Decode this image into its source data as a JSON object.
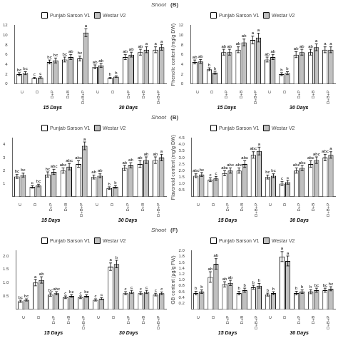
{
  "chart_data": [
    {
      "type": "bar",
      "subtitle": "Shoot",
      "categories": [
        "C",
        "D",
        "D+P",
        "D+B",
        "D+B+P",
        "C",
        "D",
        "D+P",
        "D+B",
        "D+B+P"
      ],
      "group_labels": [
        "15 Days",
        "30 Days"
      ],
      "series": [
        {
          "name": "Punjab Sarson V1",
          "color": "white",
          "values": [
            2.0,
            1.2,
            4.5,
            5.0,
            5.2,
            3.5,
            1.2,
            5.5,
            6.5,
            7.0
          ],
          "errors": [
            0.3,
            0.15,
            0.4,
            0.5,
            0.5,
            0.4,
            0.15,
            0.5,
            0.6,
            0.6
          ],
          "annotations": [
            "bc",
            "c",
            "bc",
            "bc",
            "bc",
            "ab",
            "b",
            "ab",
            "ab",
            "a"
          ]
        },
        {
          "name": "Westar V2",
          "color": "#c0c0c0",
          "values": [
            2.2,
            1.3,
            4.8,
            5.5,
            10.5,
            3.8,
            1.5,
            6.0,
            7.0,
            7.5
          ],
          "errors": [
            0.3,
            0.15,
            0.5,
            0.5,
            0.8,
            0.4,
            0.15,
            0.5,
            0.6,
            0.6
          ],
          "annotations": [
            "bc",
            "c",
            "bc",
            "ab",
            "a",
            "ab",
            "b",
            "ab",
            "a",
            "a"
          ]
        }
      ],
      "edge_color": "black",
      "ylim": [
        0,
        12
      ],
      "yticks": [
        0,
        2,
        4,
        6,
        8,
        10,
        12
      ],
      "grid": false,
      "legend": "top"
    },
    {
      "type": "bar",
      "title": "(B)",
      "ylabel": "Phenolic content (mg/g DW)",
      "categories": [
        "C",
        "D",
        "D+P",
        "D+B",
        "D+B+P",
        "C",
        "D",
        "D+P",
        "D+B",
        "D+B+P"
      ],
      "group_labels": [
        "15 Days",
        "30 Days"
      ],
      "series": [
        {
          "name": "Punjab Sarson V1",
          "color": "white",
          "values": [
            4.5,
            3.0,
            6.5,
            7.0,
            9.0,
            5.0,
            2.0,
            6.0,
            6.5,
            7.0
          ],
          "errors": [
            0.4,
            0.3,
            0.6,
            0.6,
            0.8,
            0.5,
            0.3,
            0.6,
            0.6,
            0.6
          ],
          "annotations": [
            "ab",
            "b",
            "ab",
            "ab",
            "a",
            "ab",
            "b",
            "ab",
            "ab",
            "a"
          ]
        },
        {
          "name": "Westar V2",
          "color": "#c0c0c0",
          "values": [
            4.6,
            2.3,
            6.5,
            8.5,
            9.5,
            5.5,
            2.2,
            6.5,
            7.5,
            7.0
          ],
          "errors": [
            0.4,
            0.3,
            0.6,
            0.7,
            0.9,
            0.5,
            0.3,
            0.6,
            0.7,
            0.6
          ],
          "annotations": [
            "ab",
            "b",
            "ab",
            "ab",
            "a",
            "ab",
            "b",
            "ab",
            "a",
            "a"
          ]
        }
      ],
      "edge_color": "black",
      "ylim": [
        0,
        12
      ],
      "yticks": [
        0,
        2,
        4,
        6,
        8,
        10,
        12
      ],
      "grid": false,
      "legend": "top"
    },
    {
      "type": "bar",
      "subtitle": "Shoot",
      "categories": [
        "C",
        "D",
        "D+P",
        "D+B",
        "D+B+P",
        "C",
        "D",
        "D+P",
        "D+B",
        "D+B+P"
      ],
      "group_labels": [
        "15 Days",
        "30 Days"
      ],
      "series": [
        {
          "name": "Punjab Sarson V1",
          "color": "white",
          "values": [
            1.55,
            0.75,
            1.7,
            2.0,
            2.5,
            1.5,
            0.65,
            2.2,
            2.5,
            2.8
          ],
          "errors": [
            0.15,
            0.1,
            0.2,
            0.2,
            0.25,
            0.15,
            0.1,
            0.2,
            0.25,
            0.25
          ],
          "annotations": [
            "bc",
            "c",
            "bc",
            "abc",
            "abc",
            "ab",
            "b",
            "ab",
            "ab",
            "ab"
          ]
        },
        {
          "name": "Westar V2",
          "color": "#c0c0c0",
          "values": [
            1.65,
            0.85,
            1.9,
            2.3,
            3.9,
            1.6,
            0.75,
            2.4,
            2.8,
            3.0
          ],
          "errors": [
            0.15,
            0.1,
            0.2,
            0.25,
            0.3,
            0.15,
            0.1,
            0.2,
            0.25,
            0.25
          ],
          "annotations": [
            "bc",
            "bc",
            "abc",
            "abc",
            "a",
            "ab",
            "b",
            "ab",
            "ab",
            "a"
          ]
        }
      ],
      "edge_color": "black",
      "ylim": [
        0,
        4.5
      ],
      "yticks": [
        1,
        2,
        3,
        4
      ],
      "grid": false,
      "legend": "top"
    },
    {
      "type": "bar",
      "title": "(B)",
      "ylabel": "Flavonoid content (mg/g DW)",
      "categories": [
        "C",
        "D",
        "D+P",
        "D+B",
        "D+B+P",
        "C",
        "D",
        "D+P",
        "D+B",
        "D+B+P"
      ],
      "group_labels": [
        "15 Days",
        "30 Days"
      ],
      "series": [
        {
          "name": "Punjab Sarson V1",
          "color": "white",
          "values": [
            1.6,
            1.3,
            1.8,
            2.0,
            3.2,
            1.5,
            1.0,
            2.0,
            2.5,
            3.0
          ],
          "errors": [
            0.15,
            0.15,
            0.2,
            0.2,
            0.25,
            0.15,
            0.15,
            0.2,
            0.25,
            0.25
          ],
          "annotations": [
            "abc",
            "c",
            "abc",
            "abc",
            "abc",
            "bc",
            "c",
            "abc",
            "abc",
            "abc"
          ]
        },
        {
          "name": "Westar V2",
          "color": "#c0c0c0",
          "values": [
            1.7,
            1.4,
            2.0,
            2.5,
            3.5,
            1.6,
            1.1,
            2.2,
            2.8,
            3.2
          ],
          "errors": [
            0.15,
            0.15,
            0.2,
            0.25,
            0.3,
            0.15,
            0.15,
            0.2,
            0.25,
            0.25
          ],
          "annotations": [
            "bc",
            "c",
            "abc",
            "abc",
            "a",
            "bc",
            "c",
            "abc",
            "abc",
            "a"
          ]
        }
      ],
      "edge_color": "black",
      "ylim": [
        0,
        4.5
      ],
      "yticks": [
        0.5,
        {
          "value": 1,
          "label": "1.0"
        },
        1.5,
        {
          "value": 2,
          "label": "2.0"
        },
        2.5,
        {
          "value": 3,
          "label": "3.0"
        },
        3.5,
        {
          "value": 4,
          "label": "4.0"
        },
        4.5
      ],
      "grid": false,
      "legend": "top"
    },
    {
      "type": "bar",
      "subtitle": "Shoot",
      "categories": [
        "C",
        "D",
        "D+P",
        "D+B",
        "D+B+P",
        "C",
        "D",
        "D+P",
        "D+B",
        "D+B+P"
      ],
      "group_labels": [
        "15 Days",
        "30 Days"
      ],
      "series": [
        {
          "name": "Punjab Sarson V1",
          "color": "white",
          "values": [
            0.3,
            1.0,
            0.55,
            0.45,
            0.45,
            0.35,
            1.6,
            0.6,
            0.6,
            0.55
          ],
          "errors": [
            0.04,
            0.12,
            0.06,
            0.05,
            0.05,
            0.04,
            0.14,
            0.06,
            0.06,
            0.05
          ],
          "annotations": [
            "bc",
            "a",
            "bc",
            "c",
            "c",
            "c",
            "a",
            "c",
            "c",
            "c"
          ]
        },
        {
          "name": "Westar V2",
          "color": "#c0c0c0",
          "values": [
            0.35,
            1.1,
            0.6,
            0.5,
            0.5,
            0.4,
            1.7,
            0.65,
            0.65,
            0.6
          ],
          "errors": [
            0.04,
            0.12,
            0.06,
            0.05,
            0.05,
            0.04,
            0.14,
            0.06,
            0.06,
            0.05
          ],
          "annotations": [
            "bc",
            "ab",
            "abc",
            "bc",
            "bc",
            "c",
            "b",
            "c",
            "c",
            "c"
          ]
        }
      ],
      "edge_color": "black",
      "ylim": [
        0,
        2.2
      ],
      "yticks": [
        0.5,
        {
          "value": 1,
          "label": "1.0"
        },
        1.5,
        {
          "value": 2,
          "label": "2.0"
        }
      ],
      "grid": false,
      "legend": "top"
    },
    {
      "type": "bar",
      "title": "(F)",
      "ylabel": "GB content (μg/g FW)",
      "categories": [
        "C",
        "D",
        "D+P",
        "D+B",
        "D+B+P",
        "C",
        "D",
        "D+P",
        "D+B",
        "D+B+P"
      ],
      "group_labels": [
        "15 Days",
        "30 Days"
      ],
      "series": [
        {
          "name": "Punjab Sarson V1",
          "color": "white",
          "values": [
            0.55,
            1.1,
            0.85,
            0.55,
            0.75,
            0.5,
            1.8,
            0.55,
            0.6,
            0.65
          ],
          "errors": [
            0.06,
            0.18,
            0.09,
            0.06,
            0.07,
            0.05,
            0.17,
            0.06,
            0.07,
            0.07
          ],
          "annotations": [
            "b",
            "ab",
            "ab",
            "b",
            "b",
            "b",
            "a",
            "b",
            "b",
            "bc"
          ]
        },
        {
          "name": "Westar V2",
          "color": "#c0c0c0",
          "values": [
            0.6,
            1.55,
            0.9,
            0.65,
            0.8,
            0.55,
            1.65,
            0.6,
            0.65,
            0.7
          ],
          "errors": [
            0.06,
            0.18,
            0.09,
            0.07,
            0.08,
            0.05,
            0.17,
            0.06,
            0.07,
            0.07
          ],
          "annotations": [
            "b",
            "ab",
            "ab",
            "b",
            "b",
            "b",
            "a",
            "b",
            "bc",
            "bc"
          ]
        }
      ],
      "edge_color": "black",
      "ylim": [
        0,
        2.0
      ],
      "yticks": [
        0.2,
        0.4,
        0.6,
        0.8,
        {
          "value": 1,
          "label": "1.0"
        },
        1.2,
        1.4,
        1.6,
        1.8,
        {
          "value": 2,
          "label": "2.0"
        }
      ],
      "grid": false,
      "legend": "top"
    }
  ]
}
